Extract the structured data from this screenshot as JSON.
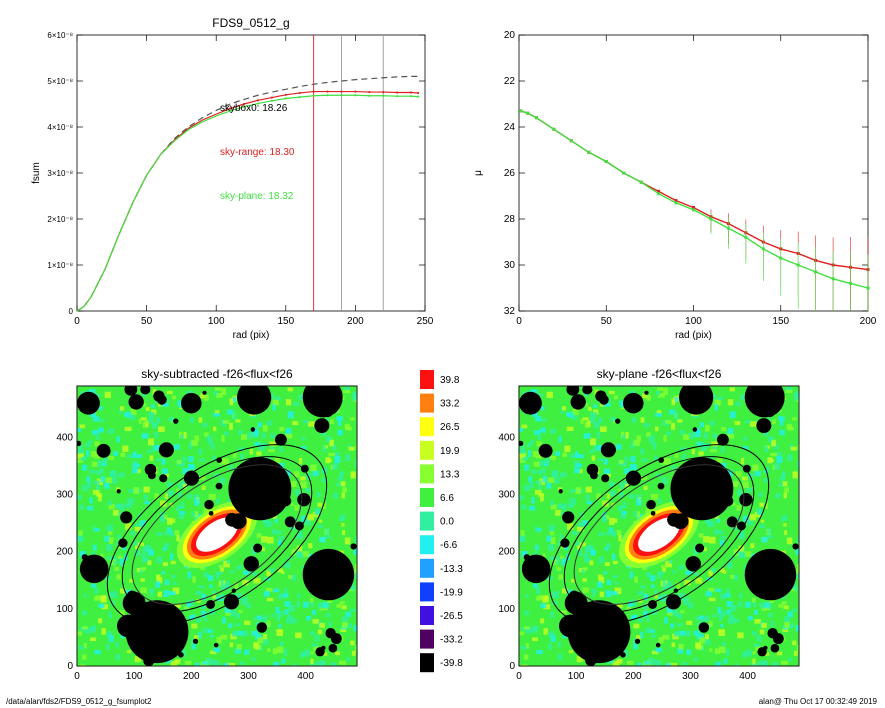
{
  "footer": {
    "path": "/data/alan/fds2/FDS9_0512_g_fsumplot2",
    "stamp": "alan@  Thu Oct 17 00:32:49 2019"
  },
  "colors": {
    "sky_range": "#e02020",
    "sky_plane": "#40e040",
    "model": "#555555",
    "marker": "#999999"
  },
  "chart_data": [
    {
      "id": "fsum",
      "type": "line",
      "title": "FDS9_0512_g",
      "xlabel": "rad (pix)",
      "ylabel": "fsum",
      "xlim": [
        0,
        250
      ],
      "ylim": [
        0,
        6e-08
      ],
      "xticks": [
        0,
        50,
        100,
        150,
        200,
        250
      ],
      "xtick_labels": [
        "0",
        "50",
        "100",
        "150",
        "200",
        "250"
      ],
      "yticks": [
        0,
        1e-08,
        2e-08,
        3e-08,
        4e-08,
        5e-08,
        6e-08
      ],
      "ytick_labels": [
        "0",
        "1×10⁻⁸",
        "2×10⁻⁸",
        "3×10⁻⁸",
        "4×10⁻⁸",
        "5×10⁻⁸",
        "6×10⁻⁸"
      ],
      "vlines": [
        {
          "x": 170,
          "color": "#e02020"
        },
        {
          "x": 190,
          "color": "#999999"
        },
        {
          "x": 220,
          "color": "#999999"
        }
      ],
      "annotations": [
        {
          "text": "skybox0: 18.26",
          "color": "#000000"
        },
        {
          "text": "sky-range: 18.30",
          "color": "#e02020"
        },
        {
          "text": "sky-plane: 18.32",
          "color": "#40e040"
        }
      ],
      "series": [
        {
          "style": "dashed",
          "color": "#555555",
          "x": [
            0,
            5,
            10,
            20,
            30,
            40,
            50,
            60,
            70,
            80,
            90,
            100,
            110,
            120,
            130,
            140,
            150,
            160,
            170,
            180,
            190,
            200,
            210,
            220,
            230,
            240,
            245
          ],
          "y": [
            0,
            1e-09,
            3e-09,
            9e-09,
            1.65e-08,
            2.35e-08,
            2.95e-08,
            3.4e-08,
            3.75e-08,
            4e-08,
            4.2e-08,
            4.36e-08,
            4.5e-08,
            4.6e-08,
            4.69e-08,
            4.76e-08,
            4.82e-08,
            4.88e-08,
            4.93e-08,
            4.97e-08,
            5e-08,
            5.03e-08,
            5.05e-08,
            5.07e-08,
            5.09e-08,
            5.1e-08,
            5.1e-08
          ]
        },
        {
          "style": "solid",
          "color": "#e02020",
          "x": [
            0,
            5,
            10,
            20,
            30,
            40,
            50,
            60,
            70,
            80,
            90,
            100,
            110,
            120,
            130,
            140,
            150,
            160,
            170,
            180,
            190,
            200,
            210,
            220,
            230,
            240,
            245
          ],
          "y": [
            0,
            1e-09,
            3e-09,
            9e-09,
            1.65e-08,
            2.35e-08,
            2.95e-08,
            3.4e-08,
            3.72e-08,
            3.97e-08,
            4.15e-08,
            4.28e-08,
            4.4e-08,
            4.5e-08,
            4.58e-08,
            4.64e-08,
            4.7e-08,
            4.74e-08,
            4.77e-08,
            4.77e-08,
            4.77e-08,
            4.77e-08,
            4.76e-08,
            4.76e-08,
            4.75e-08,
            4.75e-08,
            4.74e-08
          ]
        },
        {
          "style": "solid",
          "color": "#40e040",
          "x": [
            0,
            5,
            10,
            20,
            30,
            40,
            50,
            60,
            70,
            80,
            90,
            100,
            110,
            120,
            130,
            140,
            150,
            160,
            170,
            180,
            190,
            200,
            210,
            220,
            230,
            240,
            245
          ],
          "y": [
            0,
            1e-09,
            3e-09,
            9e-09,
            1.65e-08,
            2.35e-08,
            2.95e-08,
            3.4e-08,
            3.7e-08,
            3.94e-08,
            4.11e-08,
            4.24e-08,
            4.35e-08,
            4.44e-08,
            4.51e-08,
            4.57e-08,
            4.62e-08,
            4.65e-08,
            4.68e-08,
            4.69e-08,
            4.69e-08,
            4.69e-08,
            4.68e-08,
            4.68e-08,
            4.67e-08,
            4.67e-08,
            4.66e-08
          ]
        }
      ]
    },
    {
      "id": "mu",
      "type": "scatter",
      "title": "",
      "xlabel": "rad (pix)",
      "ylabel": "μ",
      "xlim": [
        0,
        200
      ],
      "ylim": [
        32,
        20
      ],
      "xticks": [
        0,
        50,
        100,
        150,
        200
      ],
      "xtick_labels": [
        "0",
        "50",
        "100",
        "150",
        "200"
      ],
      "yticks": [
        20,
        22,
        24,
        26,
        28,
        30,
        32
      ],
      "ytick_labels": [
        "20",
        "22",
        "24",
        "26",
        "28",
        "30",
        "32"
      ],
      "series": [
        {
          "color": "#e02020",
          "x": [
            1,
            5,
            10,
            20,
            30,
            40,
            50,
            60,
            70,
            80,
            90,
            100,
            110,
            120,
            130,
            140,
            150,
            160,
            170,
            180,
            190,
            200
          ],
          "y": [
            23.3,
            23.4,
            23.6,
            24.1,
            24.6,
            25.1,
            25.5,
            26.0,
            26.4,
            26.8,
            27.2,
            27.5,
            27.9,
            28.2,
            28.6,
            29.0,
            29.3,
            29.5,
            29.8,
            30.0,
            30.1,
            30.2
          ]
        },
        {
          "color": "#40e040",
          "x": [
            1,
            5,
            10,
            20,
            30,
            40,
            50,
            60,
            70,
            80,
            90,
            100,
            110,
            120,
            130,
            140,
            150,
            160,
            170,
            180,
            190,
            200
          ],
          "y": [
            23.3,
            23.4,
            23.6,
            24.1,
            24.6,
            25.1,
            25.5,
            26.0,
            26.4,
            26.9,
            27.3,
            27.6,
            28.0,
            28.4,
            28.8,
            29.3,
            29.7,
            30.0,
            30.3,
            30.6,
            30.8,
            31.0
          ]
        }
      ]
    },
    {
      "id": "image-left",
      "type": "heatmap",
      "title": "sky-subtracted -f26<flux<f26",
      "xlim": [
        0,
        490
      ],
      "ylim": [
        0,
        490
      ],
      "xticks": [
        0,
        100,
        200,
        300,
        400
      ],
      "xtick_labels": [
        "0",
        "100",
        "200",
        "300",
        "400"
      ],
      "yticks": [
        0,
        100,
        200,
        300,
        400
      ],
      "ytick_labels": [
        "0",
        "100",
        "200",
        "300",
        "400"
      ]
    },
    {
      "id": "image-right",
      "type": "heatmap",
      "title": "sky-plane -f26<flux<f26",
      "xlim": [
        0,
        490
      ],
      "ylim": [
        0,
        490
      ],
      "xticks": [
        0,
        100,
        200,
        300,
        400
      ],
      "xtick_labels": [
        "0",
        "100",
        "200",
        "300",
        "400"
      ],
      "yticks": [
        0,
        100,
        200,
        300,
        400
      ],
      "ytick_labels": [
        "0",
        "100",
        "200",
        "300",
        "400"
      ]
    },
    {
      "id": "colorbar",
      "type": "heatmap",
      "levels": [
        {
          "label": "39.8",
          "color": "#ff1010"
        },
        {
          "label": "33.2",
          "color": "#ff8010"
        },
        {
          "label": "26.5",
          "color": "#ffff10"
        },
        {
          "label": "19.9",
          "color": "#c8ff20"
        },
        {
          "label": "13.3",
          "color": "#88ff30"
        },
        {
          "label": "6.6",
          "color": "#40f040"
        },
        {
          "label": "0.0",
          "color": "#30f0a0"
        },
        {
          "label": "-6.6",
          "color": "#20f0f0"
        },
        {
          "label": "-13.3",
          "color": "#20a0ff"
        },
        {
          "label": "-19.9",
          "color": "#1040ff"
        },
        {
          "label": "-26.5",
          "color": "#4010e0"
        },
        {
          "label": "-33.2",
          "color": "#500060"
        },
        {
          "label": "-39.8",
          "color": "#000000"
        }
      ]
    }
  ],
  "galaxy": {
    "center": [
      245,
      230
    ],
    "ellipses": [
      {
        "a": 110,
        "b": 55
      },
      {
        "a": 170,
        "b": 90
      },
      {
        "a": 190,
        "b": 100
      },
      {
        "a": 220,
        "b": 115
      }
    ],
    "angle_deg": 35
  }
}
